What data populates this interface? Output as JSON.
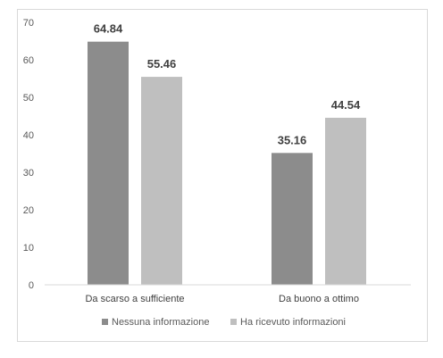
{
  "chart_data": {
    "type": "bar",
    "categories": [
      "Da scarso a sufficiente",
      "Da buono a ottimo"
    ],
    "series": [
      {
        "name": "Nessuna informazione",
        "values": [
          64.84,
          35.16
        ],
        "color": "#8c8c8c"
      },
      {
        "name": "Ha ricevuto informazioni",
        "values": [
          55.46,
          44.54
        ],
        "color": "#bfbfbf"
      }
    ],
    "data_labels": [
      [
        "64.84",
        "35.16"
      ],
      [
        "55.46",
        "44.54"
      ]
    ],
    "y_ticks": [
      0,
      10,
      20,
      30,
      40,
      50,
      60,
      70
    ],
    "ylim": [
      0,
      70
    ],
    "grid": false,
    "legend_position": "bottom",
    "axis_color": "#d9d9d9",
    "title": "",
    "xlabel": "",
    "ylabel": ""
  }
}
